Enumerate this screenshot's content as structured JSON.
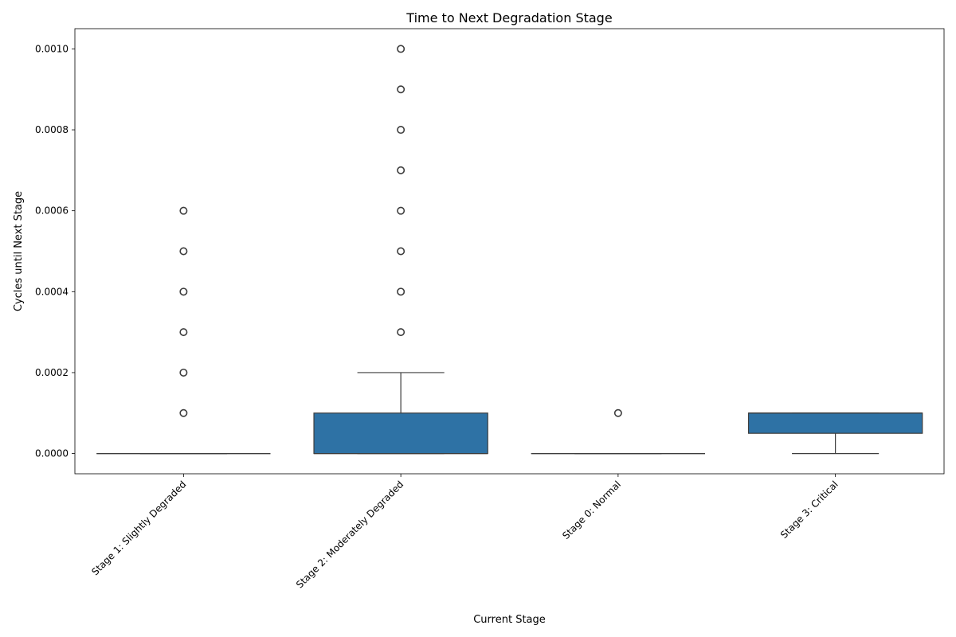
{
  "chart_data": {
    "type": "box",
    "title": "Time to Next Degradation Stage",
    "xlabel": "Current Stage",
    "ylabel": "Cycles until Next Stage",
    "ylim": [
      -5e-05,
      0.00105
    ],
    "yticks": [
      0.0,
      0.0002,
      0.0004,
      0.0006,
      0.0008,
      0.001
    ],
    "ytick_labels": [
      "0.0000",
      "0.0002",
      "0.0004",
      "0.0006",
      "0.0008",
      "0.0010"
    ],
    "grid": false,
    "box_color": "#2e72a5",
    "categories": [
      "Stage 1: Slightly Degraded",
      "Stage 2: Moderately Degraded",
      "Stage 0: Normal",
      "Stage 3: Critical"
    ],
    "boxes": [
      {
        "category": "Stage 1: Slightly Degraded",
        "whisker_low": 0.0,
        "q1": 0.0,
        "median": 0.0,
        "q3": 0.0,
        "whisker_high": 0.0,
        "outliers": [
          0.0001,
          0.0002,
          0.0003,
          0.0004,
          0.0005,
          0.0006
        ]
      },
      {
        "category": "Stage 2: Moderately Degraded",
        "whisker_low": 0.0,
        "q1": 0.0,
        "median": 0.0,
        "q3": 0.0001,
        "whisker_high": 0.0002,
        "outliers": [
          0.0003,
          0.0004,
          0.0005,
          0.0006,
          0.0007,
          0.0008,
          0.0009,
          0.001
        ]
      },
      {
        "category": "Stage 0: Normal",
        "whisker_low": 0.0,
        "q1": 0.0,
        "median": 0.0,
        "q3": 0.0,
        "whisker_high": 0.0,
        "outliers": [
          0.0001
        ]
      },
      {
        "category": "Stage 3: Critical",
        "whisker_low": 0.0,
        "q1": 5e-05,
        "median": 0.0001,
        "q3": 0.0001,
        "whisker_high": 0.0001,
        "outliers": []
      }
    ]
  }
}
